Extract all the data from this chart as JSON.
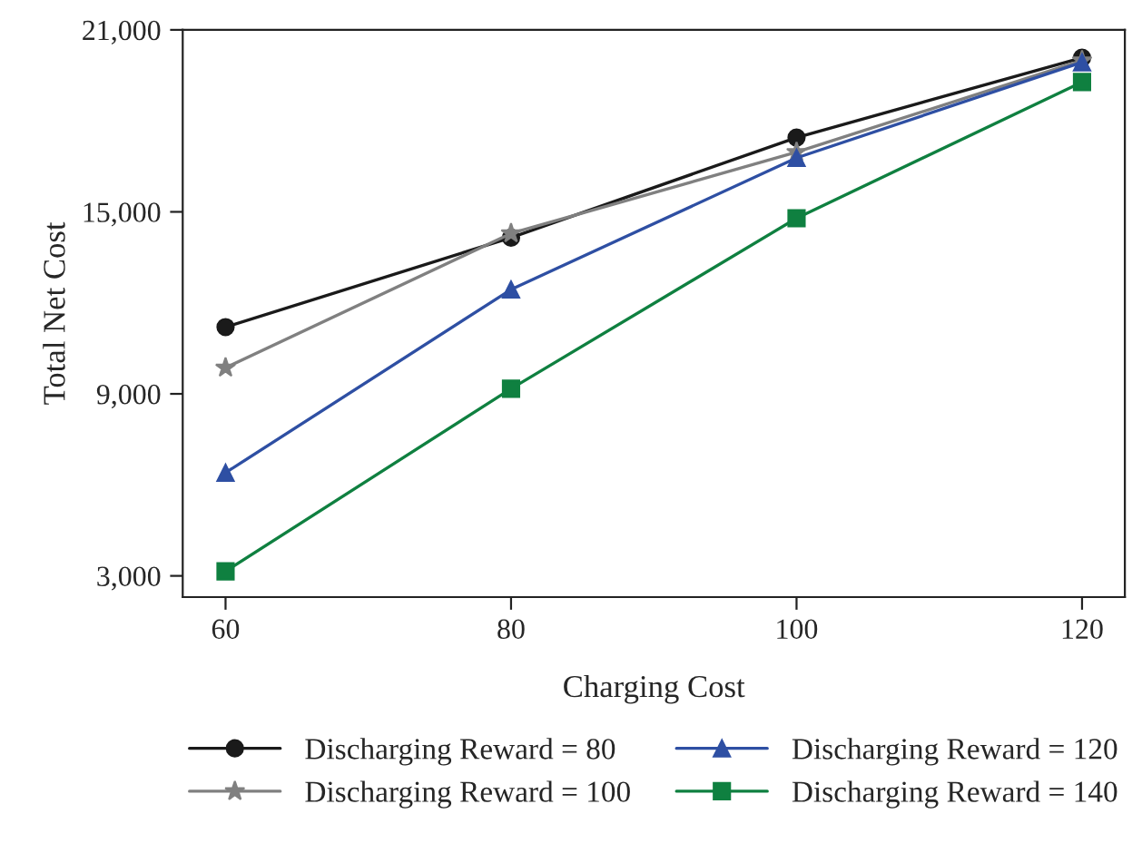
{
  "chart_data": {
    "type": "line",
    "xlabel": "Charging Cost",
    "ylabel": "Total Net Cost",
    "x": [
      60,
      80,
      100,
      120
    ],
    "xlim": [
      57,
      123
    ],
    "xticks": [
      60,
      80,
      100,
      120
    ],
    "ylim": [
      2300,
      21000
    ],
    "yticks": [
      {
        "value": 3000,
        "label": "3,000"
      },
      {
        "value": 9000,
        "label": "9,000"
      },
      {
        "value": 15000,
        "label": "15,000"
      },
      {
        "value": 21000,
        "label": "21,000"
      }
    ],
    "grid": false,
    "legend": "bottom",
    "line_style": "solid",
    "series": [
      {
        "name": "Discharging Reward = 80",
        "color": "#1a1a1a",
        "marker": "circle",
        "values": [
          11200,
          14150,
          17450,
          20080
        ]
      },
      {
        "name": "Discharging Reward = 100",
        "color": "#808080",
        "marker": "star",
        "values": [
          9860,
          14290,
          16970,
          19990
        ]
      },
      {
        "name": "Discharging Reward = 120",
        "color": "#2e4fa3",
        "marker": "triangle",
        "values": [
          6400,
          12440,
          16780,
          19930
        ]
      },
      {
        "name": "Discharging Reward = 140",
        "color": "#0f8040",
        "marker": "square",
        "values": [
          3150,
          9170,
          14790,
          19280
        ]
      }
    ]
  }
}
